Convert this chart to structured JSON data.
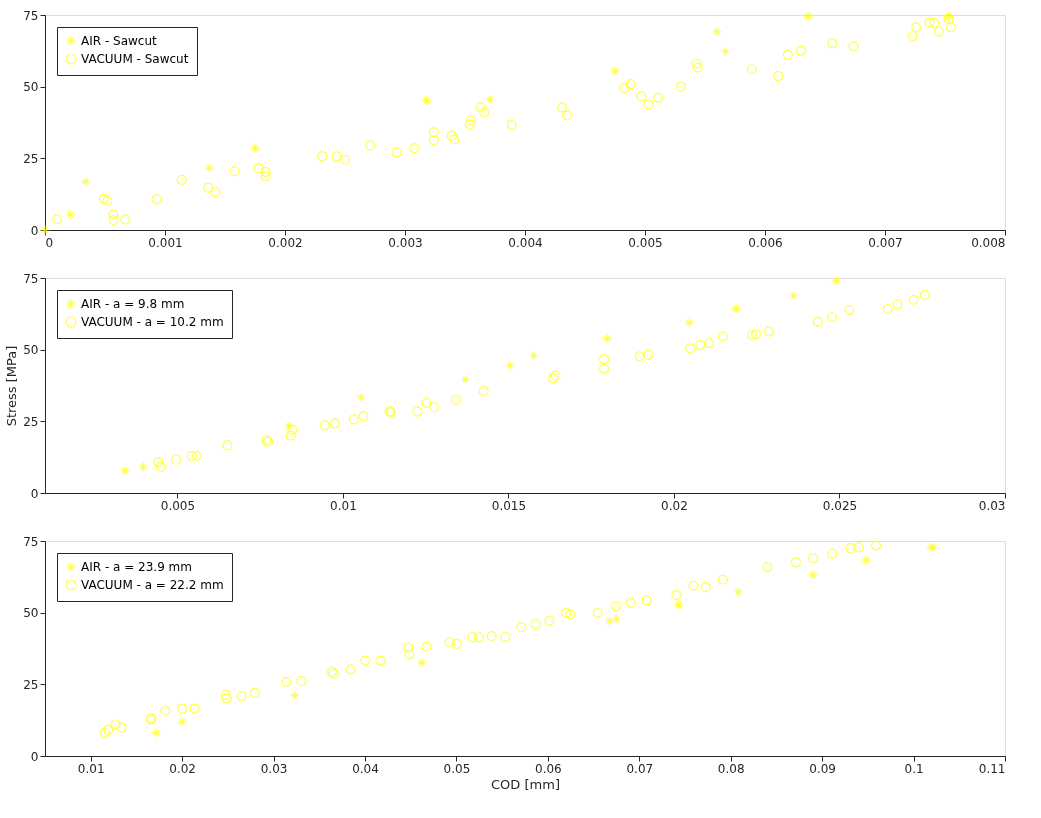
{
  "chart_data": [
    {
      "type": "scatter",
      "xlim": [
        0,
        0.008
      ],
      "ylim": [
        0,
        75
      ],
      "xticks": [
        0,
        0.001,
        0.002,
        0.003,
        0.004,
        0.005,
        0.006,
        0.007,
        0.008
      ],
      "yticks": [
        0,
        25,
        50,
        75
      ],
      "grid": false,
      "legend": "top left",
      "series": [
        {
          "name": "AIR - Sawcut",
          "color": "#ffff00",
          "marker": "cross",
          "x": [
            0,
            0.00021,
            0.00034,
            0.00137,
            0.00175,
            0.00318,
            0.00371,
            0.00475,
            0.0056,
            0.00567,
            0.00636,
            0.00753
          ],
          "values": [
            0,
            5.5,
            16.9,
            21.6,
            28.5,
            45.2,
            45.6,
            55.5,
            69.2,
            62.3,
            74.5,
            74.5
          ]
        },
        {
          "name": "VACUUM - Sawcut",
          "color": "#ffff00",
          "marker": "circle",
          "x": [
            0.0001,
            0.00049,
            0.00052,
            0.00057,
            0.00057,
            0.00067,
            0.00093,
            0.00114,
            0.00136,
            0.00142,
            0.00158,
            0.00178,
            0.00184,
            0.00184,
            0.00231,
            0.00243,
            0.0025,
            0.00271,
            0.00293,
            0.00308,
            0.00324,
            0.00324,
            0.00339,
            0.00341,
            0.00354,
            0.00355,
            0.00363,
            0.00366,
            0.00389,
            0.00431,
            0.00435,
            0.00483,
            0.00488,
            0.00497,
            0.00503,
            0.00511,
            0.0053,
            0.00543,
            0.00544,
            0.00589,
            0.00611,
            0.00619,
            0.0063,
            0.00656,
            0.00674,
            0.00723,
            0.00726,
            0.00737,
            0.00741,
            0.00745,
            0.00753,
            0.00755
          ],
          "values": [
            3.7,
            10.9,
            10.2,
            5.4,
            3.4,
            3.7,
            10.7,
            17.5,
            14.7,
            13.1,
            20.5,
            21.5,
            20.3,
            18.7,
            25.7,
            25.7,
            24.5,
            29.5,
            27,
            28.5,
            34.1,
            31.3,
            32.9,
            31.6,
            36.8,
            38.2,
            42.8,
            41,
            36.7,
            42.8,
            39.9,
            49.5,
            50.9,
            46.6,
            43.8,
            46.1,
            50,
            58,
            56.6,
            56,
            53.7,
            61.1,
            62.5,
            65.1,
            64,
            67.6,
            70.7,
            72.4,
            72.2,
            69.2,
            73.6,
            70.7
          ]
        }
      ]
    },
    {
      "type": "scatter",
      "ylabel": "Stress [MPa]",
      "xlim": [
        0.001,
        0.03
      ],
      "ylim": [
        0,
        75
      ],
      "xticks": [
        0.005,
        0.01,
        0.015,
        0.02,
        0.025,
        0.03
      ],
      "yticks": [
        0,
        25,
        50,
        75
      ],
      "grid": false,
      "legend": "top left",
      "series": [
        {
          "name": "AIR - a = 9.8 mm",
          "color": "#ffff00",
          "marker": "cross",
          "x": [
            0.00342,
            0.00397,
            0.00837,
            0.01055,
            0.0137,
            0.01505,
            0.01576,
            0.01798,
            0.02047,
            0.02188,
            0.02362,
            0.0249
          ],
          "values": [
            7.8,
            9.1,
            23.4,
            33.4,
            39.6,
            44.5,
            47.9,
            53.9,
            59.4,
            64.3,
            68.8,
            74
          ]
        },
        {
          "name": "VACUUM - a = 10.2 mm",
          "color": "#ffff00",
          "marker": "circle",
          "x": [
            0.00442,
            0.0045,
            0.00496,
            0.00543,
            0.00558,
            0.00651,
            0.00769,
            0.00774,
            0.00847,
            0.00842,
            0.00945,
            0.00975,
            0.01033,
            0.01062,
            0.01141,
            0.01145,
            0.01225,
            0.01252,
            0.01275,
            0.01342,
            0.01425,
            0.01635,
            0.01642,
            0.01789,
            0.01789,
            0.01896,
            0.01923,
            0.02049,
            0.02079,
            0.02106,
            0.02148,
            0.02236,
            0.02248,
            0.02287,
            0.02435,
            0.02478,
            0.0253,
            0.02646,
            0.02676,
            0.02724,
            0.02758
          ],
          "values": [
            10.8,
            9.1,
            11.6,
            12.9,
            12.9,
            16.6,
            18.5,
            17.9,
            22.1,
            20,
            23.6,
            24.2,
            25.7,
            26.8,
            28.5,
            28.1,
            28.4,
            31.4,
            29.9,
            32.5,
            35.6,
            40,
            40.9,
            46.7,
            43.4,
            47.7,
            48.2,
            50.5,
            51.6,
            52.3,
            54.6,
            55,
            55.3,
            56.3,
            59.7,
            61.3,
            63.8,
            64.2,
            65.8,
            67.4,
            69.1
          ]
        }
      ]
    },
    {
      "type": "scatter",
      "xlabel": "COD [mm]",
      "xlim": [
        0.005,
        0.11
      ],
      "ylim": [
        0,
        75
      ],
      "xticks": [
        0.01,
        0.02,
        0.03,
        0.04,
        0.05,
        0.06,
        0.07,
        0.08,
        0.09,
        0.1,
        0.11
      ],
      "yticks": [
        0,
        25,
        50,
        75
      ],
      "grid": false,
      "legend": "top left",
      "series": [
        {
          "name": "AIR - a = 23.9 mm",
          "color": "#ffff00",
          "marker": "cross",
          "x": [
            0.01715,
            0.02,
            0.03232,
            0.04622,
            0.06675,
            0.06747,
            0.07429,
            0.08082,
            0.08901,
            0.09481,
            0.1019,
            0.1022
          ],
          "values": [
            8.1,
            11.9,
            21.1,
            32.5,
            47,
            47.7,
            52.8,
            57.3,
            63.2,
            68.3,
            72.8,
            72.8
          ]
        },
        {
          "name": "VACUUM - a = 22.2 mm",
          "color": "#ffff00",
          "marker": "circle",
          "x": [
            0.01156,
            0.01192,
            0.01272,
            0.01338,
            0.01657,
            0.01664,
            0.01817,
            0.02,
            0.02136,
            0.02477,
            0.02488,
            0.02652,
            0.02797,
            0.03142,
            0.03305,
            0.03639,
            0.03657,
            0.03842,
            0.04005,
            0.04169,
            0.04474,
            0.04485,
            0.04673,
            0.04924,
            0.05004,
            0.05174,
            0.05247,
            0.05385,
            0.05537,
            0.05711,
            0.05866,
            0.06018,
            0.06199,
            0.06247,
            0.06544,
            0.06747,
            0.06907,
            0.07081,
            0.07407,
            0.07596,
            0.07726,
            0.07915,
            0.084,
            0.08713,
            0.08901,
            0.0911,
            0.0931,
            0.094,
            0.0959
          ],
          "values": [
            8.2,
            9.1,
            11,
            9.9,
            12.8,
            13.1,
            15.8,
            16.5,
            16.5,
            21.3,
            20.1,
            20.9,
            22,
            25.8,
            26.1,
            29.4,
            28.7,
            30.2,
            33.3,
            33.2,
            37.8,
            35.5,
            38.1,
            39.6,
            39.1,
            41.4,
            41.4,
            41.8,
            41.6,
            44.9,
            45.9,
            47.2,
            49.9,
            49.4,
            49.9,
            52.2,
            53.4,
            54.3,
            56.1,
            59.4,
            58.9,
            61.5,
            65.9,
            67.5,
            69,
            70.5,
            72.5,
            72.8,
            73.5
          ]
        }
      ]
    }
  ]
}
